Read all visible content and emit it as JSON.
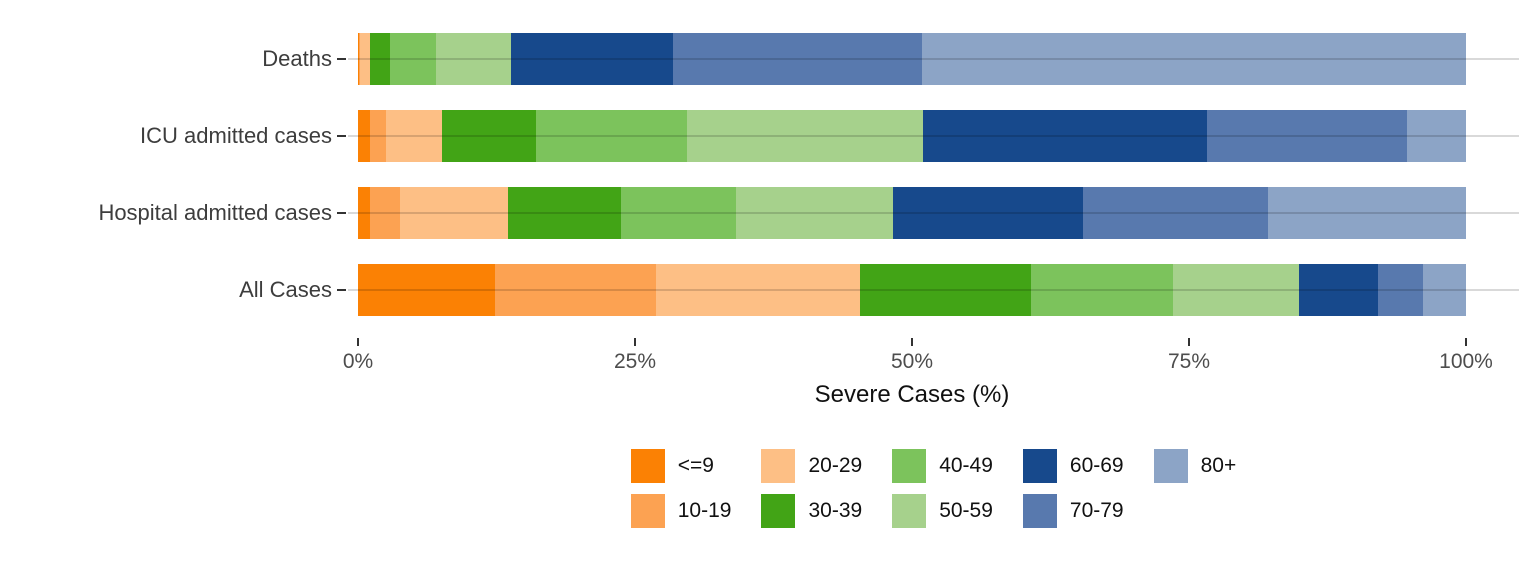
{
  "chart_data": {
    "type": "bar",
    "orientation": "horizontal",
    "stacked": true,
    "unit": "percent",
    "xlabel": "Severe Cases (%)",
    "xlim": [
      0,
      100
    ],
    "x_tick_labels": [
      "0%",
      "25%",
      "50%",
      "75%",
      "100%"
    ],
    "grid": "horizontal-only",
    "legend_position": "bottom",
    "categories": [
      "Deaths",
      "ICU admitted cases",
      "Hospital admitted cases",
      "All Cases"
    ],
    "age_groups": [
      "<=9",
      "10-19",
      "20-29",
      "30-39",
      "40-49",
      "50-59",
      "60-69",
      "70-79",
      "80+"
    ],
    "colors": {
      "<=9": "#FB8104",
      "10-19": "#FCA252",
      "20-29": "#FDBF85",
      "30-39": "#42A416",
      "40-49": "#7CC35C",
      "50-59": "#A6D18C",
      "60-69": "#17498C",
      "70-79": "#5879AE",
      "80+": "#8CA4C6"
    },
    "series": [
      {
        "name": "<=9",
        "values": [
          0.05,
          1.1,
          1.1,
          12.4
        ]
      },
      {
        "name": "10-19",
        "values": [
          0.15,
          1.4,
          2.7,
          14.5
        ]
      },
      {
        "name": "20-29",
        "values": [
          0.9,
          5.1,
          9.7,
          18.4
        ]
      },
      {
        "name": "30-39",
        "values": [
          1.8,
          8.5,
          10.2,
          15.4
        ]
      },
      {
        "name": "40-49",
        "values": [
          4.1,
          13.6,
          10.4,
          12.9
        ]
      },
      {
        "name": "50-59",
        "values": [
          6.8,
          21.3,
          14.2,
          11.3
        ]
      },
      {
        "name": "60-69",
        "values": [
          14.6,
          25.6,
          17.1,
          7.2
        ]
      },
      {
        "name": "70-79",
        "values": [
          22.5,
          18.1,
          16.7,
          4.0
        ]
      },
      {
        "name": "80+",
        "values": [
          49.1,
          5.3,
          17.9,
          3.9
        ]
      }
    ],
    "legend_columns": [
      [
        "<=9",
        "10-19"
      ],
      [
        "20-29",
        "30-39"
      ],
      [
        "40-49",
        "50-59"
      ],
      [
        "60-69",
        "70-79"
      ],
      [
        "80+"
      ]
    ]
  }
}
